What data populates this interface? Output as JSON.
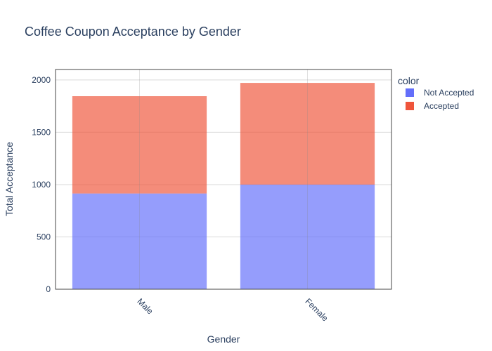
{
  "chart_data": {
    "type": "bar",
    "barmode": "stack",
    "title": "Coffee Coupon Acceptance by Gender",
    "xlabel": "Gender",
    "ylabel": "Total Acceptance",
    "categories": [
      "Male",
      "Female"
    ],
    "ylim": [
      0,
      2100
    ],
    "yticks": [
      0,
      500,
      1000,
      1500,
      2000
    ],
    "grid": true,
    "legend": {
      "title": "color",
      "position": "right"
    },
    "series": [
      {
        "name": "Not Accepted",
        "values": [
          915,
          1000
        ],
        "color": "#636efa"
      },
      {
        "name": "Accepted",
        "values": [
          930,
          972
        ],
        "color": "#ef553b"
      }
    ]
  }
}
